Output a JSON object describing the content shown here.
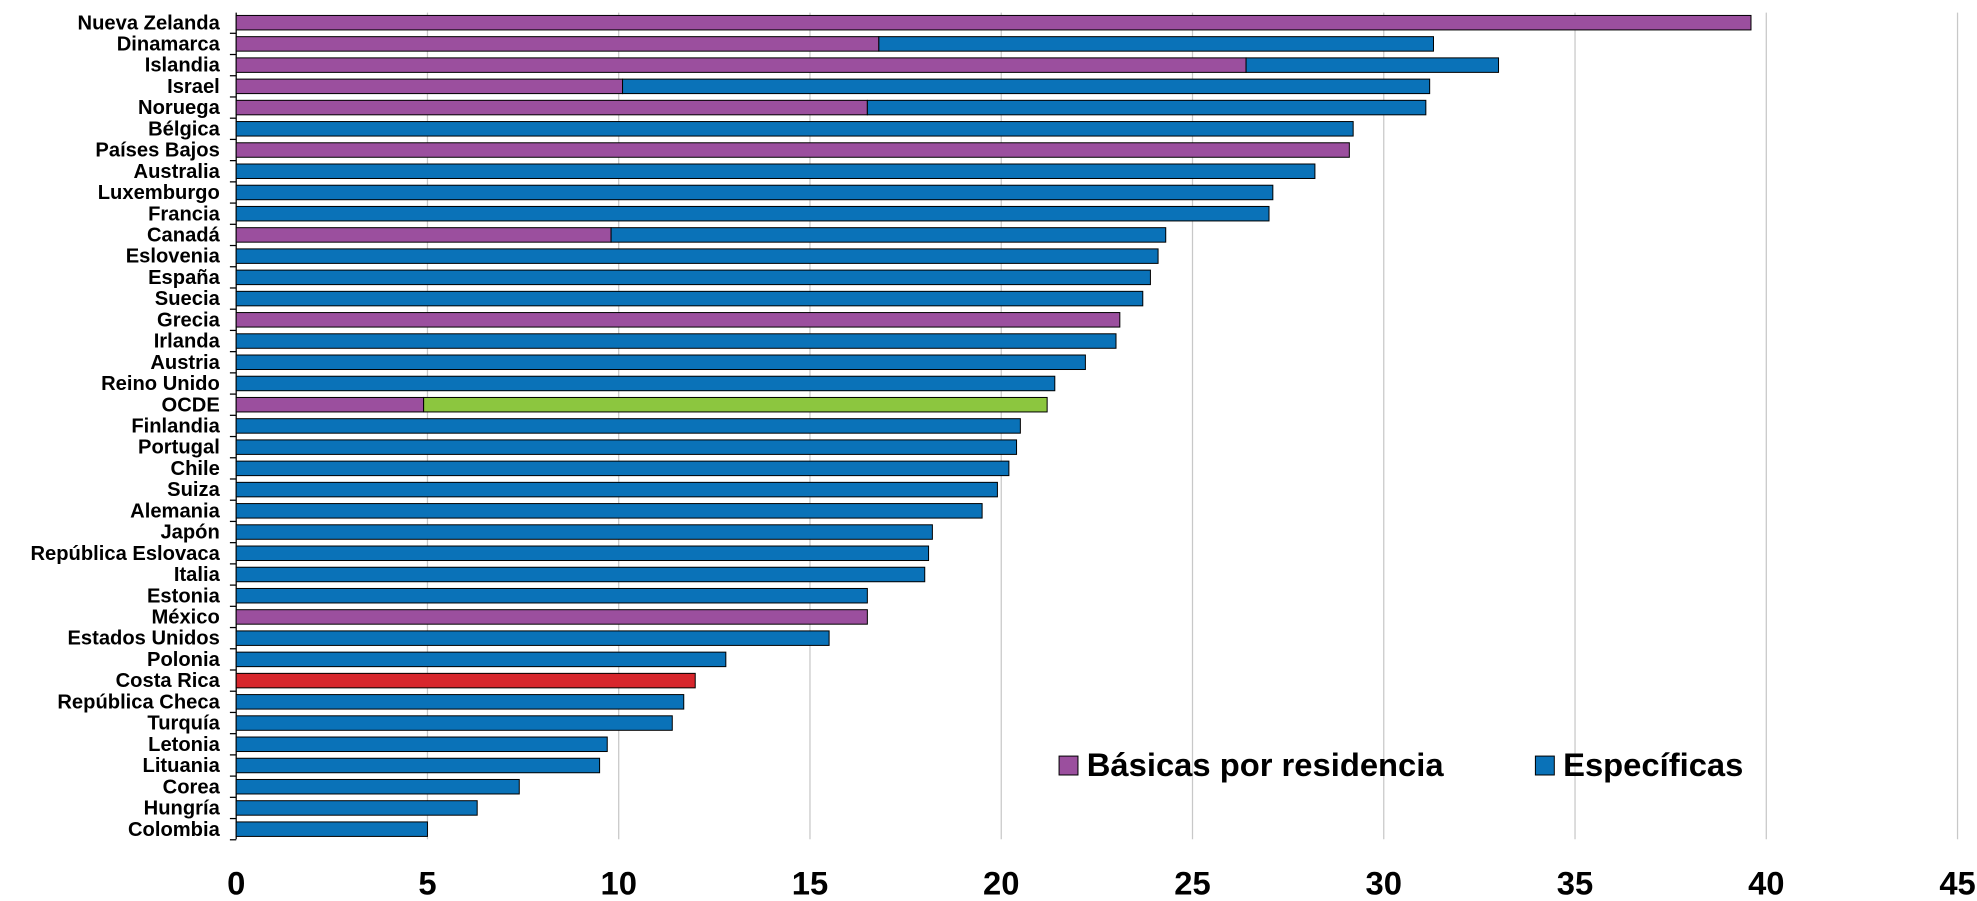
{
  "chart_data": {
    "type": "stacked-barh",
    "categories": [
      "Nueva Zelanda",
      "Dinamarca",
      "Islandia",
      "Israel",
      "Noruega",
      "Bélgica",
      "Países Bajos",
      "Australia",
      "Luxemburgo",
      "Francia",
      "Canadá",
      "Eslovenia",
      "España",
      "Suecia",
      "Grecia",
      "Irlanda",
      "Austria",
      "Reino Unido",
      "OCDE",
      "Finlandia",
      "Portugal",
      "Chile",
      "Suiza",
      "Alemania",
      "Japón",
      "República Eslovaca",
      "Italia",
      "Estonia",
      "México",
      "Estados Unidos",
      "Polonia",
      "Costa Rica",
      "República Checa",
      "Turquía",
      "Letonia",
      "Lituania",
      "Corea",
      "Hungría",
      "Colombia"
    ],
    "series": [
      {
        "name": "Básicas por residencia",
        "color": "#9b4f9e",
        "values": [
          39.6,
          16.8,
          26.4,
          10.1,
          16.5,
          0,
          29.1,
          0,
          0,
          0,
          9.8,
          0,
          0,
          0,
          23.1,
          0,
          0,
          0,
          4.9,
          0,
          0,
          0,
          0,
          0,
          0,
          0,
          0,
          0,
          16.5,
          0,
          0,
          0,
          0,
          0,
          0,
          0,
          0,
          0,
          0
        ]
      },
      {
        "name": "Específicas",
        "color": "#0a72b8",
        "values": [
          0,
          14.5,
          6.6,
          21.1,
          14.6,
          29.2,
          0,
          28.2,
          27.1,
          27.0,
          14.5,
          24.1,
          23.9,
          23.7,
          0,
          23.0,
          22.2,
          21.4,
          16.3,
          20.5,
          20.4,
          20.2,
          19.9,
          19.5,
          18.2,
          18.1,
          18.0,
          16.5,
          0,
          15.5,
          12.8,
          12.0,
          11.7,
          11.4,
          9.7,
          9.5,
          7.4,
          6.3,
          5.0
        ],
        "colors": [
          "#0a72b8",
          "#0a72b8",
          "#0a72b8",
          "#0a72b8",
          "#0a72b8",
          "#0a72b8",
          "#0a72b8",
          "#0a72b8",
          "#0a72b8",
          "#0a72b8",
          "#0a72b8",
          "#0a72b8",
          "#0a72b8",
          "#0a72b8",
          "#0a72b8",
          "#0a72b8",
          "#0a72b8",
          "#0a72b8",
          "#8cc63f",
          "#0a72b8",
          "#0a72b8",
          "#0a72b8",
          "#0a72b8",
          "#0a72b8",
          "#0a72b8",
          "#0a72b8",
          "#0a72b8",
          "#0a72b8",
          "#0a72b8",
          "#0a72b8",
          "#0a72b8",
          "#d7262c",
          "#0a72b8",
          "#0a72b8",
          "#0a72b8",
          "#0a72b8",
          "#0a72b8",
          "#0a72b8",
          "#0a72b8"
        ]
      }
    ],
    "xlim": [
      0,
      45
    ],
    "xticks": [
      0,
      5,
      10,
      15,
      20,
      25,
      30,
      35,
      40,
      45
    ],
    "grid": true,
    "legend": "lower right"
  }
}
